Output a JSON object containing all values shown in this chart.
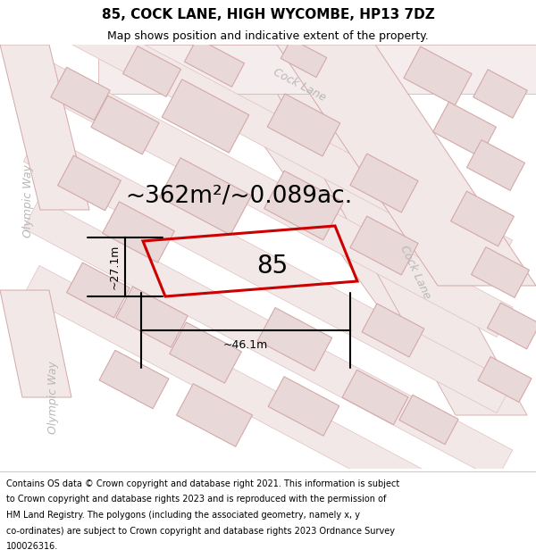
{
  "title": "85, COCK LANE, HIGH WYCOMBE, HP13 7DZ",
  "subtitle": "Map shows position and indicative extent of the property.",
  "area_text": "~362m²/~0.089ac.",
  "property_number": "85",
  "width_label": "~46.1m",
  "height_label": "~27.1m",
  "footer_lines": [
    "Contains OS data © Crown copyright and database right 2021. This information is subject",
    "to Crown copyright and database rights 2023 and is reproduced with the permission of",
    "HM Land Registry. The polygons (including the associated geometry, namely x, y",
    "co-ordinates) are subject to Crown copyright and database rights 2023 Ordnance Survey",
    "100026316."
  ],
  "bg_color": "#ffffff",
  "map_bg_color": "#ffffff",
  "road_fill": "#f2e8e8",
  "building_fill": "#e8d8d8",
  "building_edge": "#d4a8a8",
  "road_edge": "#d4a8a8",
  "highlight_color": "#cc0000",
  "street_label_color": "#b8b8b8",
  "title_color": "#000000",
  "footer_color": "#000000",
  "cock_lane_label": "Cock Lane",
  "olympic_way_label1": "Olympic Way",
  "olympic_way_label2": "Olympic Way",
  "title_fontsize": 11,
  "subtitle_fontsize": 9,
  "area_fontsize": 19,
  "prop_num_fontsize": 20,
  "dim_fontsize": 9,
  "street_fontsize": 9,
  "footer_fontsize": 7
}
